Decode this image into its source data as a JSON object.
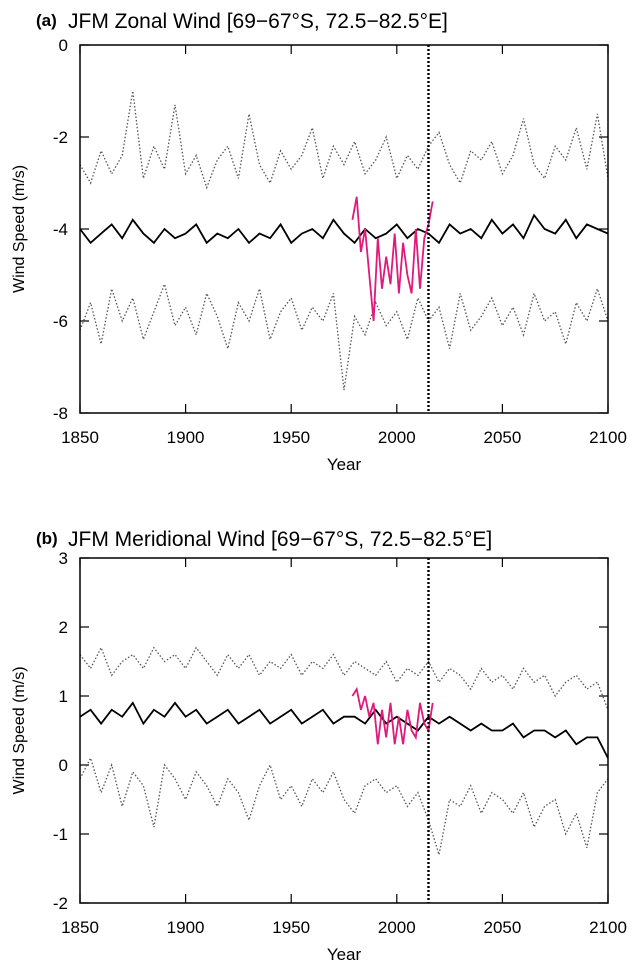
{
  "chart_data": [
    {
      "type": "line",
      "panel_label": "(a)",
      "title": "JFM Zonal Wind [69−67°S, 72.5−82.5°E]",
      "xlabel": "Year",
      "ylabel": "Wind Speed (m/s)",
      "xlim": [
        1850,
        2100
      ],
      "xticks": [
        1850,
        1900,
        1950,
        2000,
        2050,
        2100
      ],
      "ylim": [
        -8,
        0
      ],
      "yticks": [
        -8,
        -6,
        -4,
        -2,
        0
      ],
      "vline": 2015,
      "x": [
        1850,
        1855,
        1860,
        1865,
        1870,
        1875,
        1880,
        1885,
        1890,
        1895,
        1900,
        1905,
        1910,
        1915,
        1920,
        1925,
        1930,
        1935,
        1940,
        1945,
        1950,
        1955,
        1960,
        1965,
        1970,
        1975,
        1980,
        1985,
        1990,
        1995,
        2000,
        2005,
        2010,
        2015,
        2020,
        2025,
        2030,
        2035,
        2040,
        2045,
        2050,
        2055,
        2060,
        2065,
        2070,
        2075,
        2080,
        2085,
        2090,
        2095,
        2100
      ],
      "series": [
        {
          "color": "#555555",
          "linestyle": "dotted",
          "values": [
            -2.6,
            -3.0,
            -2.3,
            -2.8,
            -2.4,
            -1.0,
            -2.9,
            -2.2,
            -2.7,
            -1.3,
            -2.8,
            -2.4,
            -3.1,
            -2.5,
            -2.2,
            -2.9,
            -1.5,
            -2.6,
            -3.0,
            -2.3,
            -2.7,
            -2.4,
            -1.8,
            -2.9,
            -2.2,
            -2.6,
            -2.1,
            -2.8,
            -2.5,
            -2.0,
            -2.9,
            -2.4,
            -2.7,
            -2.2,
            -1.9,
            -2.6,
            -3.0,
            -2.3,
            -2.5,
            -2.1,
            -2.8,
            -2.4,
            -1.6,
            -2.6,
            -2.9,
            -2.2,
            -2.5,
            -1.8,
            -2.7,
            -1.5,
            -2.9
          ]
        },
        {
          "color": "#000000",
          "linestyle": "solid",
          "values": [
            -4.0,
            -4.3,
            -4.1,
            -3.9,
            -4.2,
            -3.8,
            -4.1,
            -4.3,
            -4.0,
            -4.2,
            -4.1,
            -3.9,
            -4.3,
            -4.1,
            -4.2,
            -4.0,
            -4.3,
            -4.1,
            -4.2,
            -3.9,
            -4.3,
            -4.1,
            -4.0,
            -4.2,
            -3.8,
            -4.1,
            -4.3,
            -4.0,
            -4.2,
            -4.1,
            -3.9,
            -4.2,
            -4.0,
            -4.1,
            -4.3,
            -3.9,
            -4.1,
            -4.0,
            -4.2,
            -3.8,
            -4.1,
            -3.9,
            -4.2,
            -3.7,
            -4.0,
            -4.1,
            -3.8,
            -4.2,
            -3.9,
            -4.0,
            -4.1
          ]
        },
        {
          "color": "#555555",
          "linestyle": "dotted",
          "values": [
            -6.2,
            -5.6,
            -6.5,
            -5.3,
            -6.0,
            -5.5,
            -6.4,
            -5.8,
            -5.2,
            -6.1,
            -5.7,
            -6.3,
            -5.4,
            -5.9,
            -6.6,
            -5.6,
            -6.0,
            -5.3,
            -6.4,
            -5.8,
            -5.5,
            -6.2,
            -5.7,
            -6.0,
            -5.4,
            -7.5,
            -5.9,
            -6.3,
            -5.6,
            -6.1,
            -5.8,
            -6.4,
            -5.5,
            -6.0,
            -5.7,
            -6.6,
            -5.4,
            -6.2,
            -5.9,
            -5.5,
            -6.1,
            -5.7,
            -6.3,
            -5.4,
            -6.0,
            -5.8,
            -6.5,
            -5.6,
            -6.0,
            -5.3,
            -6.0
          ]
        },
        {
          "color": "#e0197a",
          "linestyle": "solid",
          "x": [
            1979,
            1981,
            1983,
            1985,
            1987,
            1989,
            1991,
            1993,
            1995,
            1997,
            1999,
            2001,
            2003,
            2005,
            2007,
            2009,
            2011,
            2013,
            2015,
            2017
          ],
          "values": [
            -3.8,
            -3.3,
            -4.5,
            -4.0,
            -5.0,
            -6.0,
            -4.2,
            -5.3,
            -4.6,
            -5.2,
            -4.1,
            -5.4,
            -4.3,
            -5.0,
            -5.4,
            -4.0,
            -5.3,
            -4.2,
            -3.9,
            -3.4
          ]
        }
      ]
    },
    {
      "type": "line",
      "panel_label": "(b)",
      "title": "JFM Meridional Wind [69−67°S, 72.5−82.5°E]",
      "xlabel": "Year",
      "ylabel": "Wind Speed (m/s)",
      "xlim": [
        1850,
        2100
      ],
      "xticks": [
        1850,
        1900,
        1950,
        2000,
        2050,
        2100
      ],
      "ylim": [
        -2,
        3
      ],
      "yticks": [
        -2,
        -1,
        0,
        1,
        2,
        3
      ],
      "vline": 2015,
      "x": [
        1850,
        1855,
        1860,
        1865,
        1870,
        1875,
        1880,
        1885,
        1890,
        1895,
        1900,
        1905,
        1910,
        1915,
        1920,
        1925,
        1930,
        1935,
        1940,
        1945,
        1950,
        1955,
        1960,
        1965,
        1970,
        1975,
        1980,
        1985,
        1990,
        1995,
        2000,
        2005,
        2010,
        2015,
        2020,
        2025,
        2030,
        2035,
        2040,
        2045,
        2050,
        2055,
        2060,
        2065,
        2070,
        2075,
        2080,
        2085,
        2090,
        2095,
        2100
      ],
      "series": [
        {
          "color": "#555555",
          "linestyle": "dotted",
          "values": [
            1.6,
            1.4,
            1.7,
            1.3,
            1.5,
            1.6,
            1.4,
            1.7,
            1.5,
            1.6,
            1.4,
            1.7,
            1.5,
            1.3,
            1.6,
            1.4,
            1.6,
            1.3,
            1.5,
            1.4,
            1.6,
            1.3,
            1.5,
            1.4,
            1.6,
            1.3,
            1.5,
            1.4,
            1.3,
            1.5,
            1.2,
            1.4,
            1.3,
            1.5,
            1.2,
            1.4,
            1.3,
            1.1,
            1.4,
            1.2,
            1.3,
            1.1,
            1.4,
            1.2,
            1.3,
            1.0,
            1.2,
            1.3,
            1.1,
            1.2,
            0.8
          ]
        },
        {
          "color": "#000000",
          "linestyle": "solid",
          "values": [
            0.7,
            0.8,
            0.6,
            0.8,
            0.7,
            0.9,
            0.6,
            0.8,
            0.7,
            0.9,
            0.7,
            0.8,
            0.6,
            0.7,
            0.8,
            0.6,
            0.7,
            0.8,
            0.6,
            0.7,
            0.8,
            0.6,
            0.7,
            0.8,
            0.6,
            0.7,
            0.7,
            0.6,
            0.8,
            0.6,
            0.7,
            0.6,
            0.5,
            0.7,
            0.6,
            0.7,
            0.6,
            0.5,
            0.6,
            0.5,
            0.5,
            0.6,
            0.4,
            0.5,
            0.5,
            0.4,
            0.5,
            0.3,
            0.4,
            0.4,
            0.1
          ]
        },
        {
          "color": "#555555",
          "linestyle": "dotted",
          "values": [
            -0.2,
            0.1,
            -0.4,
            0.0,
            -0.6,
            -0.1,
            -0.3,
            -0.9,
            0.0,
            -0.2,
            -0.5,
            -0.1,
            -0.3,
            -0.6,
            -0.2,
            -0.4,
            -0.8,
            -0.3,
            0.0,
            -0.5,
            -0.3,
            -0.6,
            -0.2,
            -0.4,
            -0.1,
            -0.5,
            -0.7,
            -0.3,
            -0.2,
            -0.4,
            -0.3,
            -0.6,
            -0.4,
            -0.8,
            -1.3,
            -0.5,
            -0.6,
            -0.3,
            -0.7,
            -0.4,
            -0.5,
            -0.7,
            -0.4,
            -0.9,
            -0.6,
            -0.5,
            -1.0,
            -0.7,
            -1.2,
            -0.4,
            -0.2
          ]
        },
        {
          "color": "#e0197a",
          "linestyle": "solid",
          "x": [
            1979,
            1981,
            1983,
            1985,
            1987,
            1989,
            1991,
            1993,
            1995,
            1997,
            1999,
            2001,
            2003,
            2005,
            2007,
            2009,
            2011,
            2013,
            2015,
            2017
          ],
          "values": [
            1.0,
            1.1,
            0.8,
            1.0,
            0.7,
            0.9,
            0.3,
            0.8,
            0.4,
            0.9,
            0.3,
            0.7,
            0.3,
            0.8,
            0.5,
            0.4,
            0.9,
            0.6,
            0.5,
            0.9
          ]
        }
      ]
    }
  ]
}
